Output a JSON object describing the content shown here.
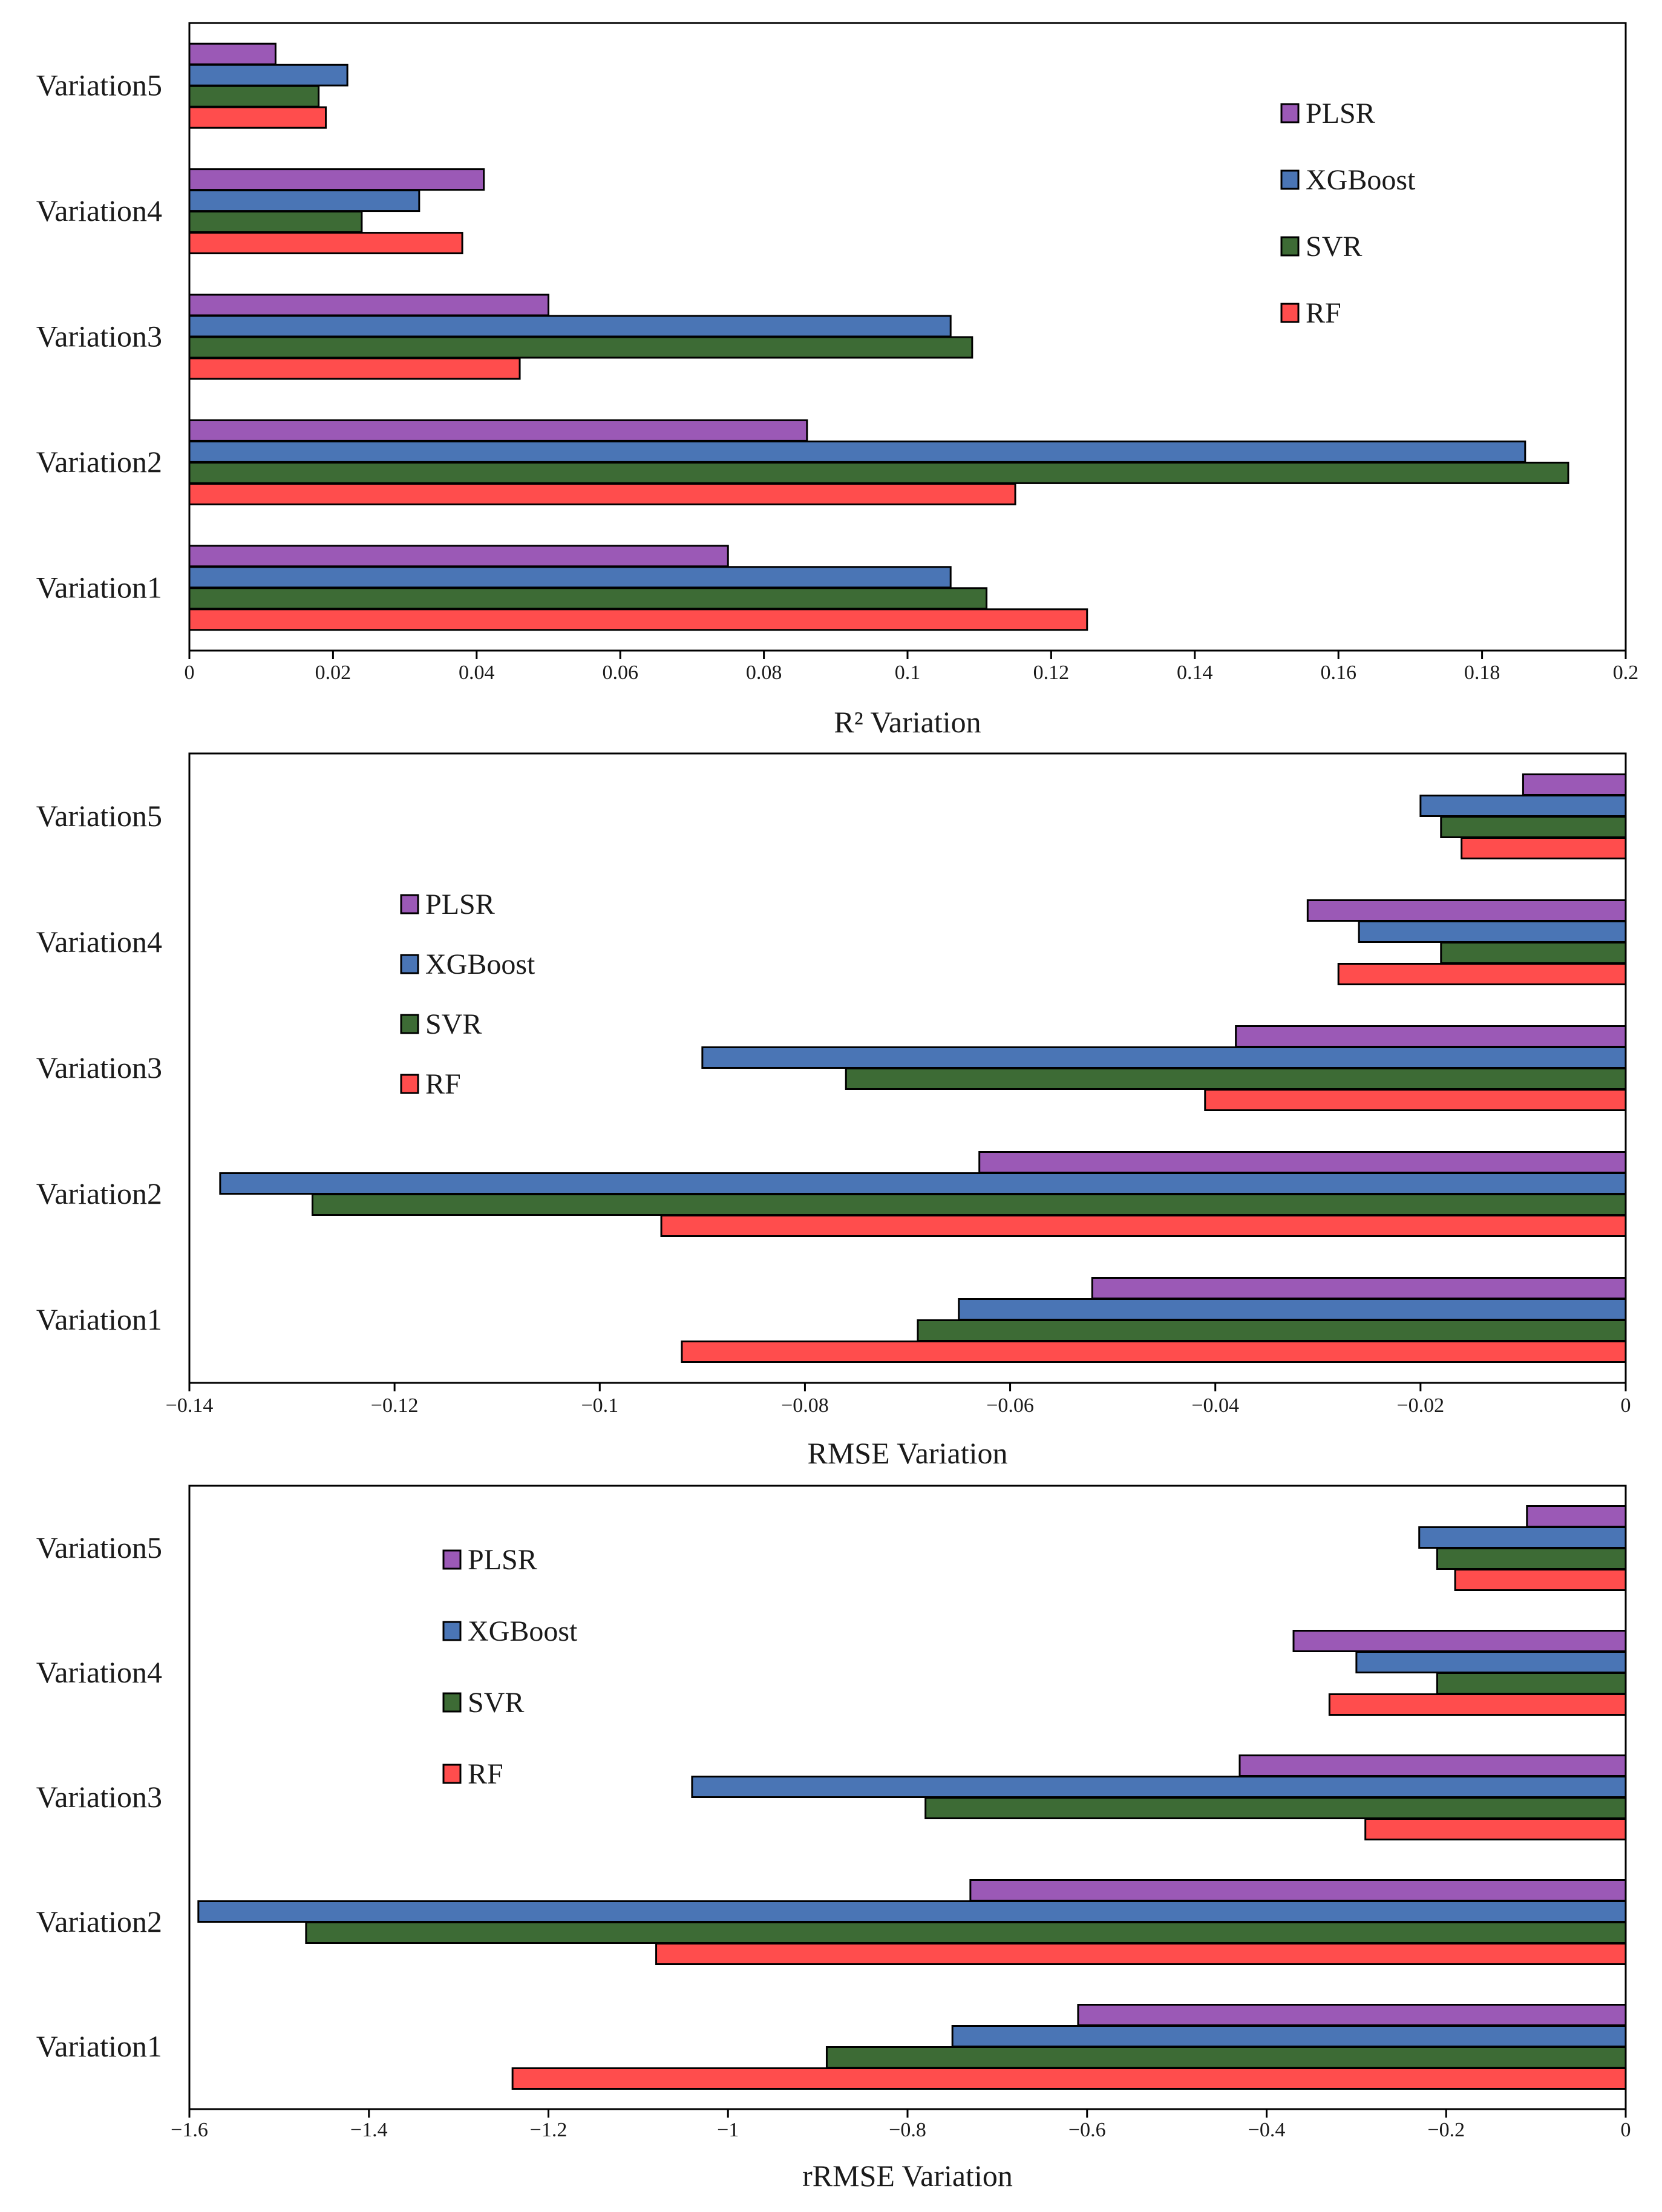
{
  "chart_data": [
    {
      "type": "bar",
      "orientation": "horizontal",
      "xlabel": "R² Variation",
      "xlim": [
        0,
        0.2
      ],
      "xticks": [
        0,
        0.02,
        0.04,
        0.06,
        0.08,
        0.1,
        0.12,
        0.14,
        0.16,
        0.18,
        0.2
      ],
      "xtick_labels": [
        "0",
        "0.02",
        "0.04",
        "0.06",
        "0.08",
        "0.1",
        "0.12",
        "0.14",
        "0.16",
        "0.18",
        "0.2"
      ],
      "categories": [
        "Variation1",
        "Variation2",
        "Variation3",
        "Variation4",
        "Variation5"
      ],
      "legend_position": "top-right",
      "series": [
        {
          "name": "PLSR",
          "color": "#9b59b6",
          "values": [
            0.075,
            0.086,
            0.05,
            0.041,
            0.012
          ]
        },
        {
          "name": "XGBoost",
          "color": "#4a75b5",
          "values": [
            0.106,
            0.186,
            0.106,
            0.032,
            0.022
          ]
        },
        {
          "name": "SVR",
          "color": "#3d6b35",
          "values": [
            0.111,
            0.192,
            0.109,
            0.024,
            0.018
          ]
        },
        {
          "name": "RF",
          "color": "#ff4d4d",
          "values": [
            0.125,
            0.115,
            0.046,
            0.038,
            0.019
          ]
        }
      ]
    },
    {
      "type": "bar",
      "orientation": "horizontal",
      "xlabel": "RMSE Variation",
      "xlim": [
        -0.14,
        0
      ],
      "xticks": [
        -0.14,
        -0.12,
        -0.1,
        -0.08,
        -0.06,
        -0.04,
        -0.02,
        0
      ],
      "xtick_labels": [
        "−0.14",
        "−0.12",
        "−0.1",
        "−0.08",
        "−0.06",
        "−0.04",
        "−0.02",
        "0"
      ],
      "categories": [
        "Variation1",
        "Variation2",
        "Variation3",
        "Variation4",
        "Variation5"
      ],
      "legend_position": "left",
      "series": [
        {
          "name": "PLSR",
          "color": "#9b59b6",
          "values": [
            -0.052,
            -0.063,
            -0.038,
            -0.031,
            -0.01
          ]
        },
        {
          "name": "XGBoost",
          "color": "#4a75b5",
          "values": [
            -0.065,
            -0.137,
            -0.09,
            -0.026,
            -0.02
          ]
        },
        {
          "name": "SVR",
          "color": "#3d6b35",
          "values": [
            -0.069,
            -0.128,
            -0.076,
            -0.018,
            -0.018
          ]
        },
        {
          "name": "RF",
          "color": "#ff4d4d",
          "values": [
            -0.092,
            -0.094,
            -0.041,
            -0.028,
            -0.016
          ]
        }
      ]
    },
    {
      "type": "bar",
      "orientation": "horizontal",
      "xlabel": "rRMSE Variation",
      "xlim": [
        -1.6,
        0
      ],
      "xticks": [
        -1.6,
        -1.4,
        -1.2,
        -1,
        -0.8,
        -0.6,
        -0.4,
        -0.2,
        0
      ],
      "xtick_labels": [
        "−1.6",
        "−1.4",
        "−1.2",
        "−1",
        "−0.8",
        "−0.6",
        "−0.4",
        "−0.2",
        "0"
      ],
      "categories": [
        "Variation1",
        "Variation2",
        "Variation3",
        "Variation4",
        "Variation5"
      ],
      "legend_position": "left",
      "series": [
        {
          "name": "PLSR",
          "color": "#9b59b6",
          "values": [
            -0.61,
            -0.73,
            -0.43,
            -0.37,
            -0.11
          ]
        },
        {
          "name": "XGBoost",
          "color": "#4a75b5",
          "values": [
            -0.75,
            -1.59,
            -1.04,
            -0.3,
            -0.23
          ]
        },
        {
          "name": "SVR",
          "color": "#3d6b35",
          "values": [
            -0.89,
            -1.47,
            -0.78,
            -0.21,
            -0.21
          ]
        },
        {
          "name": "RF",
          "color": "#ff4d4d",
          "values": [
            -1.24,
            -1.08,
            -0.29,
            -0.33,
            -0.19
          ]
        }
      ]
    }
  ]
}
